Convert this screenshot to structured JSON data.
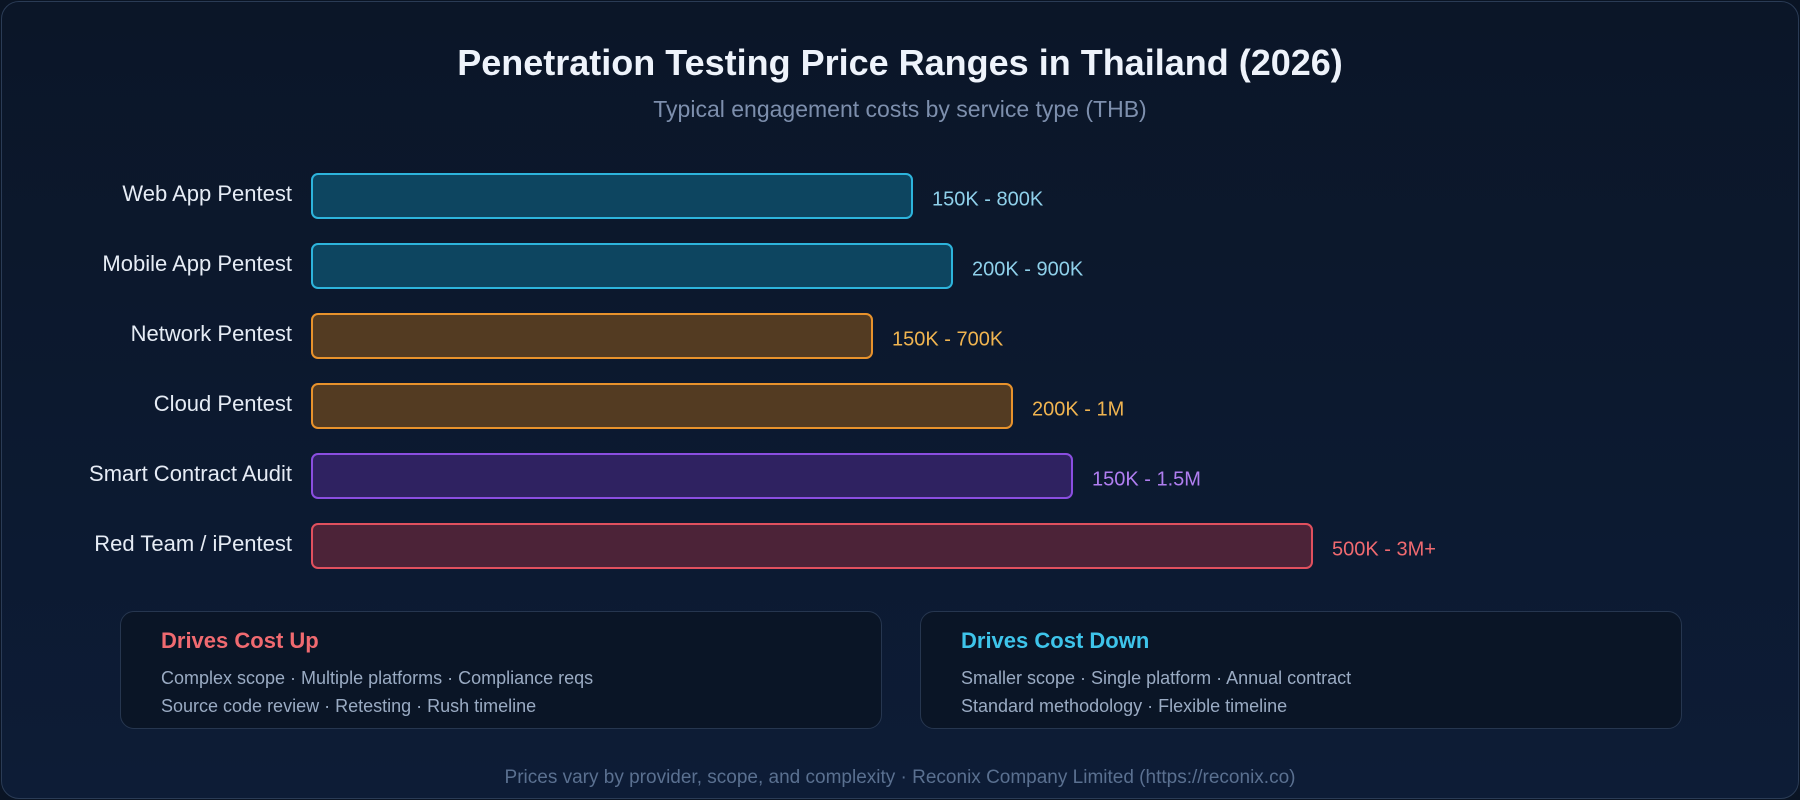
{
  "chart_data": {
    "type": "bar",
    "title": "Penetration Testing Price Ranges in Thailand (2026)",
    "subtitle": "Typical engagement costs by service type (THB)",
    "categories": [
      "Web App Pentest",
      "Mobile App Pentest",
      "Network Pentest",
      "Cloud Pentest",
      "Smart Contract Audit",
      "Red Team / iPentest"
    ],
    "values": [
      0.6,
      0.64,
      0.56,
      0.7,
      0.76,
      1.0
    ],
    "range_labels": [
      "150K - 800K",
      "200K - 900K",
      "150K - 700K",
      "200K - 1M",
      "150K - 1.5M",
      "500K - 3M+"
    ],
    "colors": [
      {
        "fill": "#0d4560",
        "stroke": "#2db4dc",
        "text": "#8fd0ea"
      },
      {
        "fill": "#0d4560",
        "stroke": "#2db4dc",
        "text": "#8fd0ea"
      },
      {
        "fill": "#533b22",
        "stroke": "#e8922c",
        "text": "#f0b450"
      },
      {
        "fill": "#533b22",
        "stroke": "#e8922c",
        "text": "#f0b450"
      },
      {
        "fill": "#2f2261",
        "stroke": "#8a4ee0",
        "text": "#b07ef0"
      },
      {
        "fill": "#4c2338",
        "stroke": "#e0505e",
        "text": "#f06a70"
      }
    ]
  },
  "drivers": {
    "up": {
      "title": "Drives Cost Up",
      "line1": "Complex scope · Multiple platforms · Compliance reqs",
      "line2": "Source code review · Retesting · Rush timeline",
      "color": "#f06a70"
    },
    "down": {
      "title": "Drives Cost Down",
      "line1": "Smaller scope · Single platform · Annual contract",
      "line2": "Standard methodology · Flexible timeline",
      "color": "#3ec4ea"
    }
  },
  "footer": "Prices vary by provider, scope, and complexity · Reconix Company Limited (https://reconix.co)"
}
